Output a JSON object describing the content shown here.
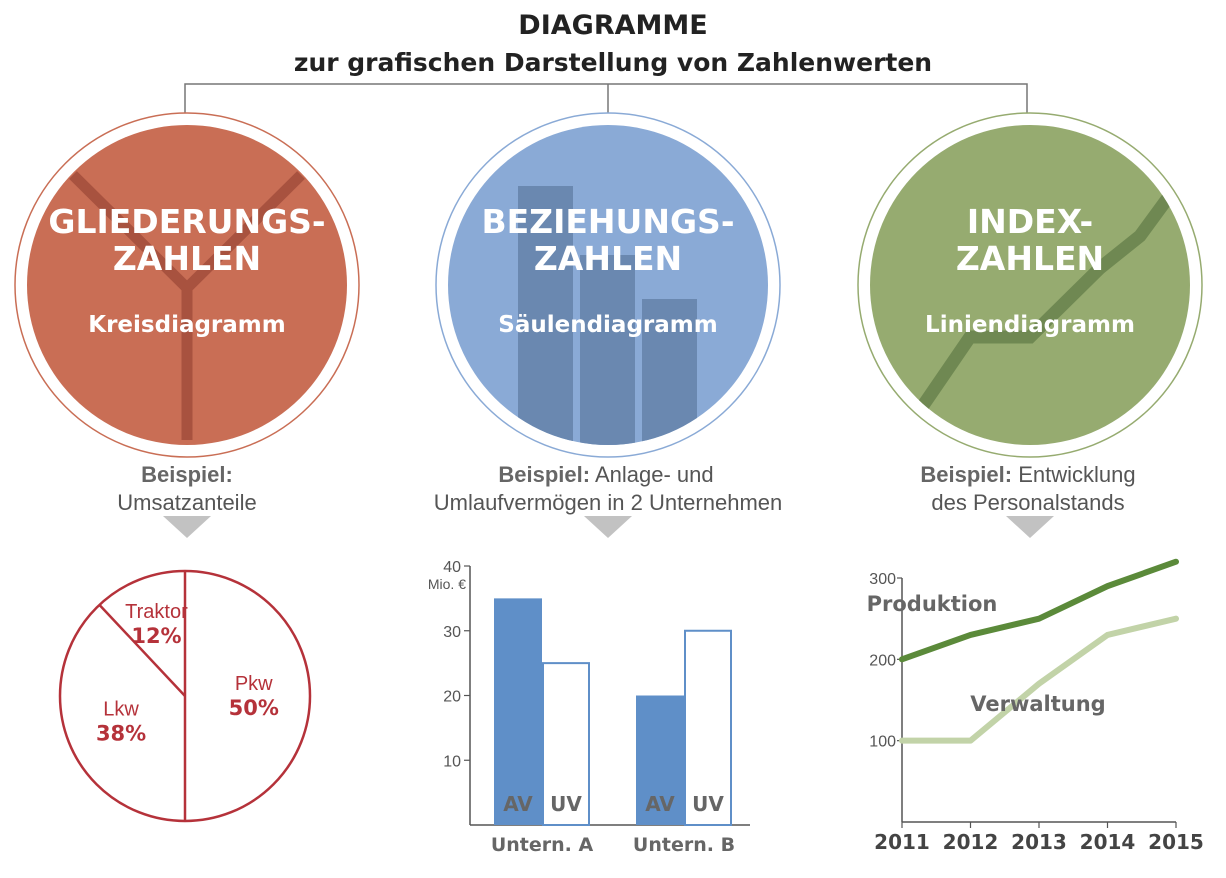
{
  "header": {
    "title": "DIAGRAMME",
    "subtitle": "zur grafischen Darstellung von Zahlenwerten"
  },
  "colors": {
    "red": "#c96e55",
    "red_dark": "#a8523f",
    "blue": "#8aaad6",
    "blue_dark": "#6a88b0",
    "green": "#96ab70",
    "green_dark": "#6f8852",
    "pie_line": "#b5323a",
    "bar_fill": "#5f8fc8",
    "prod_line": "#5b8a3a",
    "verw_line": "#c2d3a8"
  },
  "circles": [
    {
      "title1": "GLIEDERUNGS-",
      "title2": "ZAHLEN",
      "sub": "Kreisdiagramm",
      "example_bold": "Beispiel:",
      "example_rest": "",
      "example_line2": "Umsatzanteile"
    },
    {
      "title1": "BEZIEHUNGS-",
      "title2": "ZAHLEN",
      "sub": "Säulendiagramm",
      "example_bold": "Beispiel:",
      "example_rest": " Anlage- und",
      "example_line2": "Umlaufvermögen in 2 Unternehmen"
    },
    {
      "title1": "INDEX-",
      "title2": "ZAHLEN",
      "sub": "Liniendiagramm",
      "example_bold": "Beispiel:",
      "example_rest": " Entwicklung",
      "example_line2": "des Personalstands"
    }
  ],
  "chart_data": [
    {
      "type": "pie",
      "slices": [
        {
          "label": "Pkw",
          "value": 50,
          "pct_label": "50%"
        },
        {
          "label": "Lkw",
          "value": 38,
          "pct_label": "38%"
        },
        {
          "label": "Traktor",
          "value": 12,
          "pct_label": "12%"
        }
      ]
    },
    {
      "type": "bar",
      "categories": [
        "Untern. A",
        "Untern. B"
      ],
      "series": [
        {
          "name": "AV",
          "values": [
            35,
            20
          ]
        },
        {
          "name": "UV",
          "values": [
            25,
            30
          ]
        }
      ],
      "ylabel": "Mio. €",
      "ylim": [
        0,
        40
      ],
      "yticks": [
        "10",
        "20",
        "30",
        "40"
      ]
    },
    {
      "type": "line",
      "x": [
        "2011",
        "2012",
        "2013",
        "2014",
        "2015"
      ],
      "series": [
        {
          "name": "Produktion",
          "values": [
            200,
            230,
            250,
            290,
            320
          ]
        },
        {
          "name": "Verwaltung",
          "values": [
            100,
            100,
            170,
            230,
            250
          ]
        }
      ],
      "ylim": [
        0,
        300
      ],
      "yticks": [
        "100",
        "200",
        "300"
      ]
    }
  ]
}
